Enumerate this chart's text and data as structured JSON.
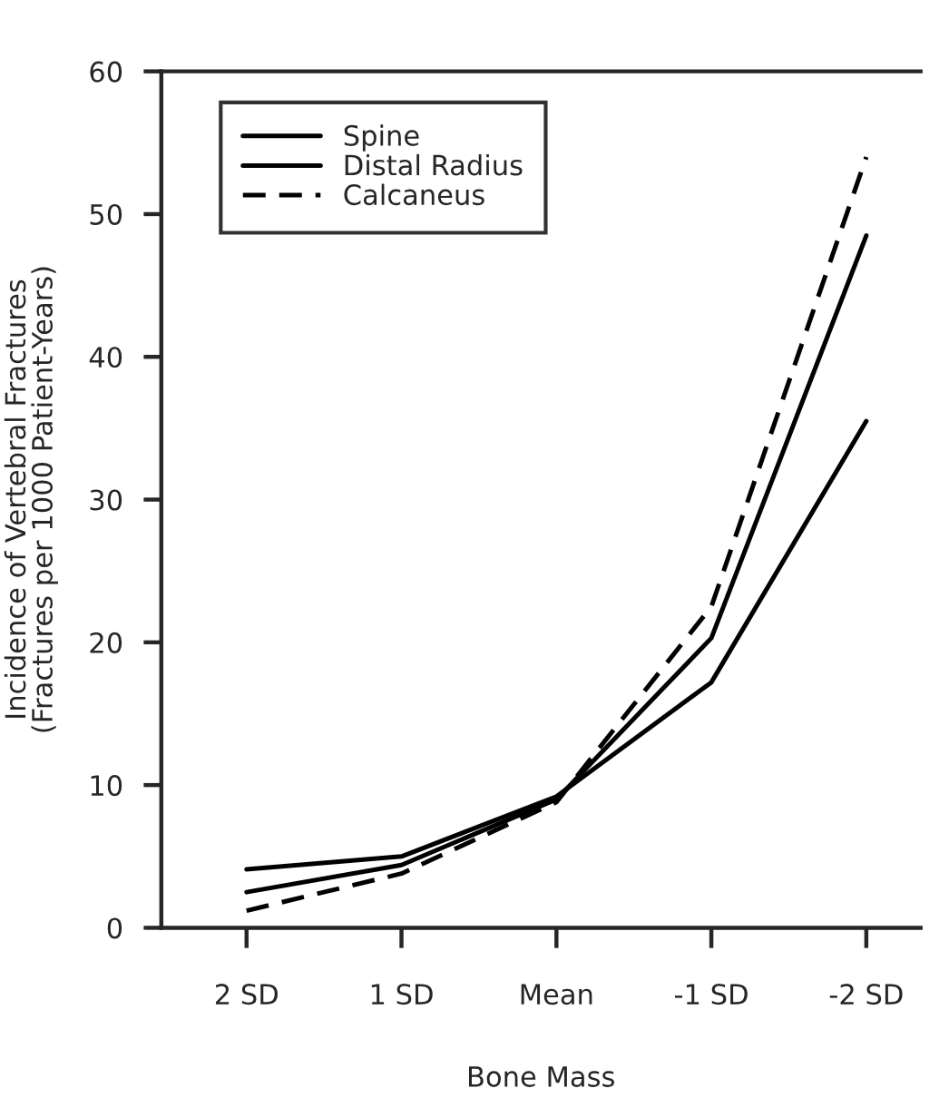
{
  "chart_data": {
    "type": "line",
    "xlabel": "Bone Mass",
    "ylabel": "Incidence of Vertebral Fractures\n(Fractures per 1000 Patient-Years)",
    "categories": [
      "2 SD",
      "1 SD",
      "Mean",
      "-1 SD",
      "-2 SD"
    ],
    "series": [
      {
        "name": "Spine",
        "color": "#000000",
        "line_style": "solid",
        "values": [
          4.1,
          5.0,
          9.2,
          17.2,
          35.5
        ]
      },
      {
        "name": "Distal Radius",
        "color": "#000000",
        "line_style": "solid",
        "values": [
          2.5,
          4.4,
          9.0,
          20.3,
          48.5
        ]
      },
      {
        "name": "Calcaneus",
        "color": "#000000",
        "line_style": "dashed",
        "values": [
          1.2,
          3.8,
          8.8,
          22.5,
          54.0
        ]
      }
    ],
    "ylim": [
      0,
      60
    ],
    "yticks": [
      0,
      10,
      20,
      30,
      40,
      50,
      60
    ],
    "grid": false,
    "legend": "top left",
    "marker": "none"
  }
}
